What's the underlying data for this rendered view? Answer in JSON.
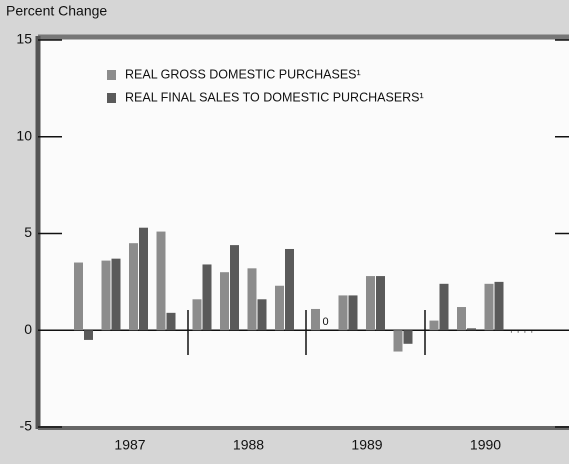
{
  "chart_data": {
    "type": "bar",
    "ylabel": "Percent Change",
    "groups": [
      "1987",
      "1988",
      "1989",
      "1990"
    ],
    "categories": [
      null,
      null,
      null,
      null,
      null,
      null,
      null,
      null,
      null,
      null,
      null,
      null,
      null,
      null,
      null,
      null
    ],
    "series": [
      {
        "name": "REAL GROSS DOMESTIC PURCHASES¹",
        "color": "#8c8c8c",
        "values": [
          3.5,
          3.6,
          4.5,
          5.1,
          1.6,
          3.0,
          3.2,
          2.3,
          1.1,
          1.8,
          2.8,
          -1.1,
          0.5,
          1.2,
          2.4,
          null
        ]
      },
      {
        "name": "REAL FINAL SALES TO DOMESTIC PURCHASERS¹",
        "color": "#5a5a5a",
        "values": [
          -0.5,
          3.7,
          5.3,
          0.9,
          3.4,
          4.4,
          1.6,
          4.2,
          0,
          1.8,
          2.8,
          -0.7,
          2.4,
          0.1,
          2.5,
          null
        ]
      }
    ],
    "ylim": [
      -5,
      15
    ],
    "yticks": [
      -5,
      0,
      5,
      10,
      15
    ],
    "legend": "upper left"
  }
}
